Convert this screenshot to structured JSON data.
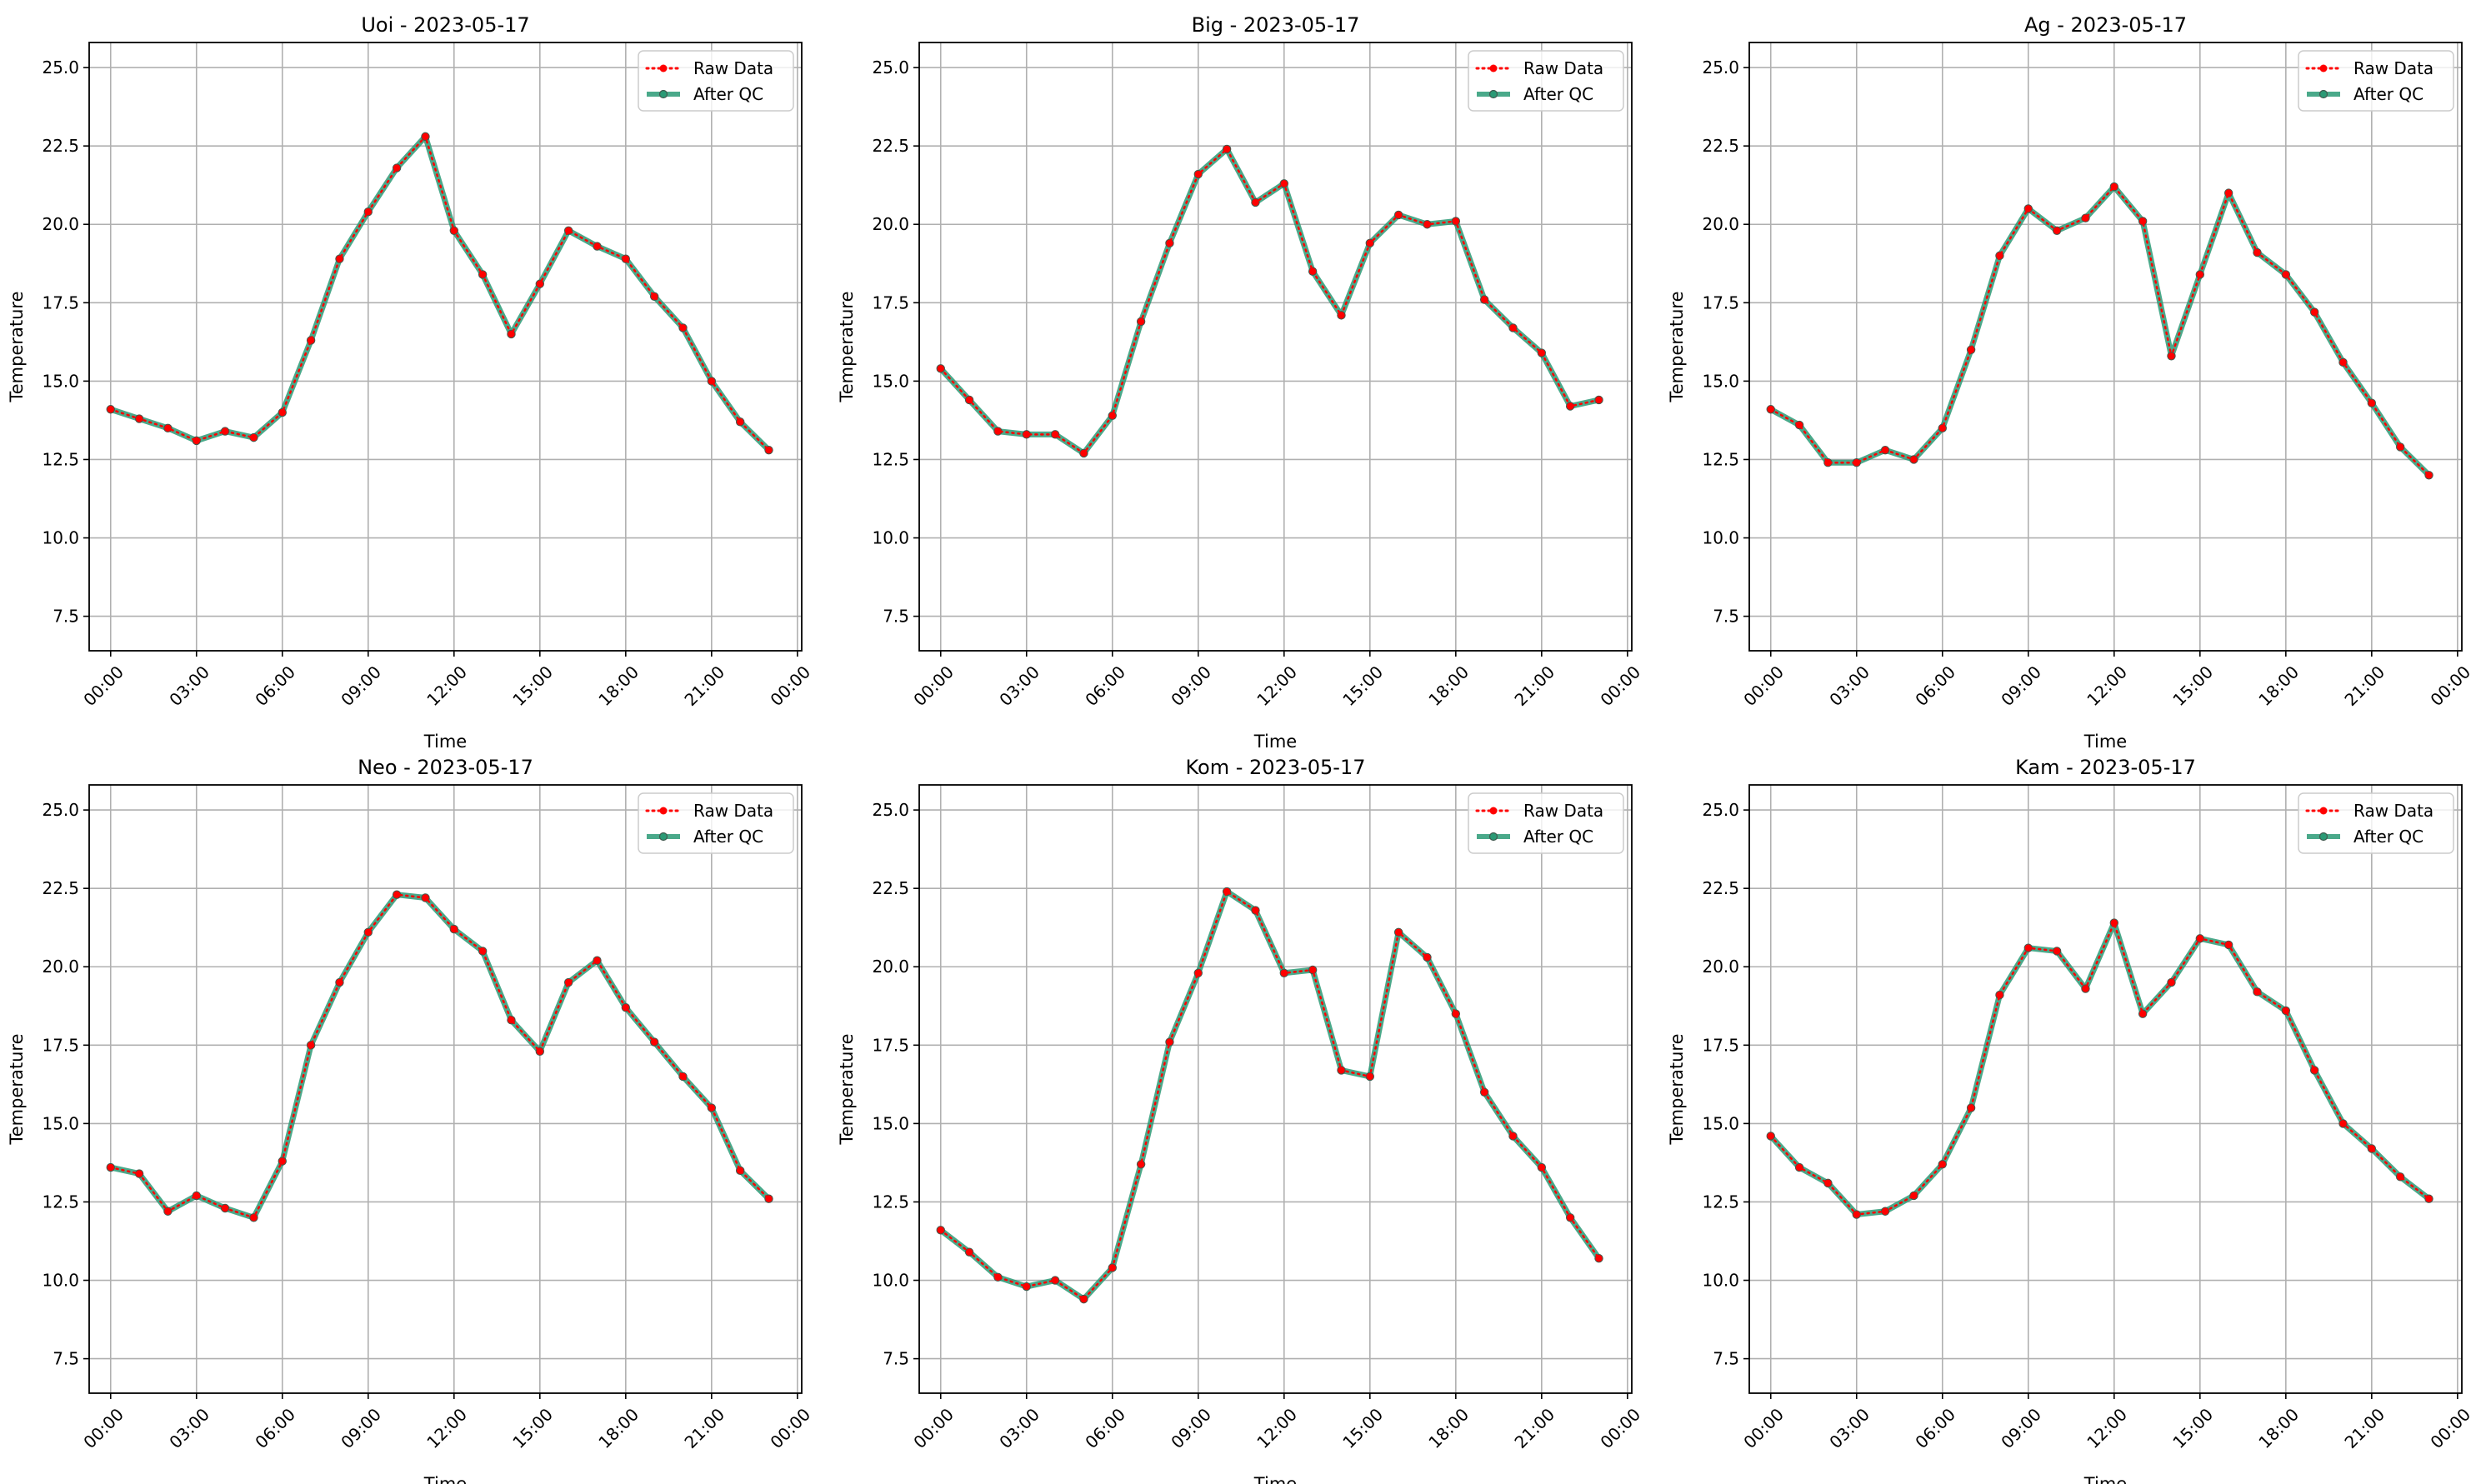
{
  "figure": {
    "legend_placement": "upper right",
    "grid": true,
    "colors": {
      "raw": "#ff0000",
      "qc": "#2a9a75",
      "marker_edge": "#3f5a4e",
      "grid": "#b0b0b0"
    }
  },
  "chart_data": [
    {
      "type": "line",
      "title": "Uoi - 2023-05-17",
      "xlabel": "Time",
      "ylabel": "Temperature",
      "xlim": [
        -0.75,
        24.15
      ],
      "ylim": [
        6.4,
        25.8
      ],
      "x_ticks": [
        0,
        3,
        6,
        9,
        12,
        15,
        18,
        21,
        24
      ],
      "x_tick_labels": [
        "00:00",
        "03:00",
        "06:00",
        "09:00",
        "12:00",
        "15:00",
        "18:00",
        "21:00",
        "00:00"
      ],
      "y_ticks": [
        7.5,
        10.0,
        12.5,
        15.0,
        17.5,
        20.0,
        22.5,
        25.0
      ],
      "y_tick_labels": [
        "7.5",
        "10.0",
        "12.5",
        "15.0",
        "17.5",
        "20.0",
        "22.5",
        "25.0"
      ],
      "x": [
        0,
        1,
        2,
        3,
        4,
        5,
        6,
        7,
        8,
        9,
        10,
        11,
        12,
        13,
        14,
        15,
        16,
        17,
        18,
        19,
        20,
        21,
        22,
        23
      ],
      "series": [
        {
          "name": "Raw Data",
          "values": [
            14.1,
            13.8,
            13.5,
            13.1,
            13.4,
            13.2,
            14.0,
            16.3,
            18.9,
            20.4,
            21.8,
            22.8,
            19.8,
            18.4,
            16.5,
            18.1,
            19.8,
            19.3,
            18.9,
            17.7,
            16.7,
            15.0,
            13.7,
            12.8
          ]
        },
        {
          "name": "After QC",
          "values": [
            14.1,
            13.8,
            13.5,
            13.1,
            13.4,
            13.2,
            14.0,
            16.3,
            18.9,
            20.4,
            21.8,
            22.8,
            19.8,
            18.4,
            16.5,
            18.1,
            19.8,
            19.3,
            18.9,
            17.7,
            16.7,
            15.0,
            13.7,
            12.8
          ]
        }
      ]
    },
    {
      "type": "line",
      "title": "Big - 2023-05-17",
      "xlabel": "Time",
      "ylabel": "Temperature",
      "xlim": [
        -0.75,
        24.15
      ],
      "ylim": [
        6.4,
        25.8
      ],
      "x_ticks": [
        0,
        3,
        6,
        9,
        12,
        15,
        18,
        21,
        24
      ],
      "x_tick_labels": [
        "00:00",
        "03:00",
        "06:00",
        "09:00",
        "12:00",
        "15:00",
        "18:00",
        "21:00",
        "00:00"
      ],
      "y_ticks": [
        7.5,
        10.0,
        12.5,
        15.0,
        17.5,
        20.0,
        22.5,
        25.0
      ],
      "y_tick_labels": [
        "7.5",
        "10.0",
        "12.5",
        "15.0",
        "17.5",
        "20.0",
        "22.5",
        "25.0"
      ],
      "x": [
        0,
        1,
        2,
        3,
        4,
        5,
        6,
        7,
        8,
        9,
        10,
        11,
        12,
        13,
        14,
        15,
        16,
        17,
        18,
        19,
        20,
        21,
        22,
        23
      ],
      "series": [
        {
          "name": "Raw Data",
          "values": [
            15.4,
            14.4,
            13.4,
            13.3,
            13.3,
            12.7,
            13.9,
            16.9,
            19.4,
            21.6,
            22.4,
            20.7,
            21.3,
            18.5,
            17.1,
            19.4,
            20.3,
            20.0,
            20.1,
            17.6,
            16.7,
            15.9,
            14.2,
            14.4
          ]
        },
        {
          "name": "After QC",
          "values": [
            15.4,
            14.4,
            13.4,
            13.3,
            13.3,
            12.7,
            13.9,
            16.9,
            19.4,
            21.6,
            22.4,
            20.7,
            21.3,
            18.5,
            17.1,
            19.4,
            20.3,
            20.0,
            20.1,
            17.6,
            16.7,
            15.9,
            14.2,
            14.4
          ]
        }
      ]
    },
    {
      "type": "line",
      "title": "Ag - 2023-05-17",
      "xlabel": "Time",
      "ylabel": "Temperature",
      "xlim": [
        -0.75,
        24.15
      ],
      "ylim": [
        6.4,
        25.8
      ],
      "x_ticks": [
        0,
        3,
        6,
        9,
        12,
        15,
        18,
        21,
        24
      ],
      "x_tick_labels": [
        "00:00",
        "03:00",
        "06:00",
        "09:00",
        "12:00",
        "15:00",
        "18:00",
        "21:00",
        "00:00"
      ],
      "y_ticks": [
        7.5,
        10.0,
        12.5,
        15.0,
        17.5,
        20.0,
        22.5,
        25.0
      ],
      "y_tick_labels": [
        "7.5",
        "10.0",
        "12.5",
        "15.0",
        "17.5",
        "20.0",
        "22.5",
        "25.0"
      ],
      "x": [
        0,
        1,
        2,
        3,
        4,
        5,
        6,
        7,
        8,
        9,
        10,
        11,
        12,
        13,
        14,
        15,
        16,
        17,
        18,
        19,
        20,
        21,
        22,
        23
      ],
      "series": [
        {
          "name": "Raw Data",
          "values": [
            14.1,
            13.6,
            12.4,
            12.4,
            12.8,
            12.5,
            13.5,
            16.0,
            19.0,
            20.5,
            19.8,
            20.2,
            21.2,
            20.1,
            15.8,
            18.4,
            21.0,
            19.1,
            18.4,
            17.2,
            15.6,
            14.3,
            12.9,
            12.0
          ]
        },
        {
          "name": "After QC",
          "values": [
            14.1,
            13.6,
            12.4,
            12.4,
            12.8,
            12.5,
            13.5,
            16.0,
            19.0,
            20.5,
            19.8,
            20.2,
            21.2,
            20.1,
            15.8,
            18.4,
            21.0,
            19.1,
            18.4,
            17.2,
            15.6,
            14.3,
            12.9,
            12.0
          ]
        }
      ]
    },
    {
      "type": "line",
      "title": "Neo - 2023-05-17",
      "xlabel": "Time",
      "ylabel": "Temperature",
      "xlim": [
        -0.75,
        24.15
      ],
      "ylim": [
        6.4,
        25.8
      ],
      "x_ticks": [
        0,
        3,
        6,
        9,
        12,
        15,
        18,
        21,
        24
      ],
      "x_tick_labels": [
        "00:00",
        "03:00",
        "06:00",
        "09:00",
        "12:00",
        "15:00",
        "18:00",
        "21:00",
        "00:00"
      ],
      "y_ticks": [
        7.5,
        10.0,
        12.5,
        15.0,
        17.5,
        20.0,
        22.5,
        25.0
      ],
      "y_tick_labels": [
        "7.5",
        "10.0",
        "12.5",
        "15.0",
        "17.5",
        "20.0",
        "22.5",
        "25.0"
      ],
      "x": [
        0,
        1,
        2,
        3,
        4,
        5,
        6,
        7,
        8,
        9,
        10,
        11,
        12,
        13,
        14,
        15,
        16,
        17,
        18,
        19,
        20,
        21,
        22,
        23
      ],
      "series": [
        {
          "name": "Raw Data",
          "values": [
            13.6,
            13.4,
            12.2,
            12.7,
            12.3,
            12.0,
            13.8,
            17.5,
            19.5,
            21.1,
            22.3,
            22.2,
            21.2,
            20.5,
            18.3,
            17.3,
            19.5,
            20.2,
            18.7,
            17.6,
            16.5,
            15.5,
            13.5,
            12.6
          ]
        },
        {
          "name": "After QC",
          "values": [
            13.6,
            13.4,
            12.2,
            12.7,
            12.3,
            12.0,
            13.8,
            17.5,
            19.5,
            21.1,
            22.3,
            22.2,
            21.2,
            20.5,
            18.3,
            17.3,
            19.5,
            20.2,
            18.7,
            17.6,
            16.5,
            15.5,
            13.5,
            12.6
          ]
        }
      ]
    },
    {
      "type": "line",
      "title": "Kom - 2023-05-17",
      "xlabel": "Time",
      "ylabel": "Temperature",
      "xlim": [
        -0.75,
        24.15
      ],
      "ylim": [
        6.4,
        25.8
      ],
      "x_ticks": [
        0,
        3,
        6,
        9,
        12,
        15,
        18,
        21,
        24
      ],
      "x_tick_labels": [
        "00:00",
        "03:00",
        "06:00",
        "09:00",
        "12:00",
        "15:00",
        "18:00",
        "21:00",
        "00:00"
      ],
      "y_ticks": [
        7.5,
        10.0,
        12.5,
        15.0,
        17.5,
        20.0,
        22.5,
        25.0
      ],
      "y_tick_labels": [
        "7.5",
        "10.0",
        "12.5",
        "15.0",
        "17.5",
        "20.0",
        "22.5",
        "25.0"
      ],
      "x": [
        0,
        1,
        2,
        3,
        4,
        5,
        6,
        7,
        8,
        9,
        10,
        11,
        12,
        13,
        14,
        15,
        16,
        17,
        18,
        19,
        20,
        21,
        22,
        23
      ],
      "series": [
        {
          "name": "Raw Data",
          "values": [
            11.6,
            10.9,
            10.1,
            9.8,
            10.0,
            9.4,
            10.4,
            13.7,
            17.6,
            19.8,
            22.4,
            21.8,
            19.8,
            19.9,
            16.7,
            16.5,
            21.1,
            20.3,
            18.5,
            16.0,
            14.6,
            13.6,
            12.0,
            10.7
          ]
        },
        {
          "name": "After QC",
          "values": [
            11.6,
            10.9,
            10.1,
            9.8,
            10.0,
            9.4,
            10.4,
            13.7,
            17.6,
            19.8,
            22.4,
            21.8,
            19.8,
            19.9,
            16.7,
            16.5,
            21.1,
            20.3,
            18.5,
            16.0,
            14.6,
            13.6,
            12.0,
            10.7
          ]
        }
      ]
    },
    {
      "type": "line",
      "title": "Kam - 2023-05-17",
      "xlabel": "Time",
      "ylabel": "Temperature",
      "xlim": [
        -0.75,
        24.15
      ],
      "ylim": [
        6.4,
        25.8
      ],
      "x_ticks": [
        0,
        3,
        6,
        9,
        12,
        15,
        18,
        21,
        24
      ],
      "x_tick_labels": [
        "00:00",
        "03:00",
        "06:00",
        "09:00",
        "12:00",
        "15:00",
        "18:00",
        "21:00",
        "00:00"
      ],
      "y_ticks": [
        7.5,
        10.0,
        12.5,
        15.0,
        17.5,
        20.0,
        22.5,
        25.0
      ],
      "y_tick_labels": [
        "7.5",
        "10.0",
        "12.5",
        "15.0",
        "17.5",
        "20.0",
        "22.5",
        "25.0"
      ],
      "x": [
        0,
        1,
        2,
        3,
        4,
        5,
        6,
        7,
        8,
        9,
        10,
        11,
        12,
        13,
        14,
        15,
        16,
        17,
        18,
        19,
        20,
        21,
        22,
        23
      ],
      "series": [
        {
          "name": "Raw Data",
          "values": [
            14.6,
            13.6,
            13.1,
            12.1,
            12.2,
            12.7,
            13.7,
            15.5,
            19.1,
            20.6,
            20.5,
            19.3,
            21.4,
            18.5,
            19.5,
            20.9,
            20.7,
            19.2,
            18.6,
            16.7,
            15.0,
            14.2,
            13.3,
            12.6
          ]
        },
        {
          "name": "After QC",
          "values": [
            14.6,
            13.6,
            13.1,
            12.1,
            12.2,
            12.7,
            13.7,
            15.5,
            19.1,
            20.6,
            20.5,
            19.3,
            21.4,
            18.5,
            19.5,
            20.9,
            20.7,
            19.2,
            18.6,
            16.7,
            15.0,
            14.2,
            13.3,
            12.6
          ]
        }
      ]
    }
  ]
}
